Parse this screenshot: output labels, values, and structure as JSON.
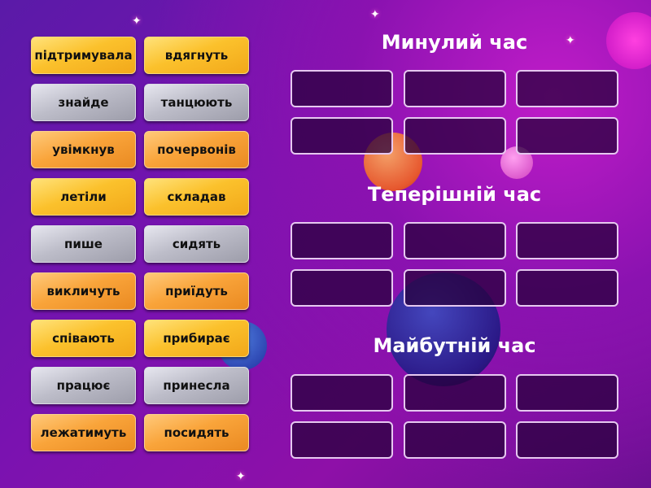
{
  "tiles": [
    {
      "label": "підтримувала",
      "color": "gold"
    },
    {
      "label": "вдягнуть",
      "color": "gold"
    },
    {
      "label": "знайде",
      "color": "silver"
    },
    {
      "label": "танцюють",
      "color": "silver"
    },
    {
      "label": "увімкнув",
      "color": "orange"
    },
    {
      "label": "почервонів",
      "color": "orange"
    },
    {
      "label": "летіли",
      "color": "gold"
    },
    {
      "label": "складав",
      "color": "gold"
    },
    {
      "label": "пише",
      "color": "silver"
    },
    {
      "label": "сидять",
      "color": "silver"
    },
    {
      "label": "викличуть",
      "color": "orange"
    },
    {
      "label": "приїдуть",
      "color": "orange"
    },
    {
      "label": "співають",
      "color": "gold"
    },
    {
      "label": "прибирає",
      "color": "gold"
    },
    {
      "label": "працює",
      "color": "silver"
    },
    {
      "label": "принесла",
      "color": "silver"
    },
    {
      "label": "лежатимуть",
      "color": "orange"
    },
    {
      "label": "посидять",
      "color": "orange"
    }
  ],
  "groups": [
    {
      "title": "Минулий час",
      "slots": 6
    },
    {
      "title": "Теперішній час",
      "slots": 6
    },
    {
      "title": "Майбутній час",
      "slots": 6
    }
  ]
}
